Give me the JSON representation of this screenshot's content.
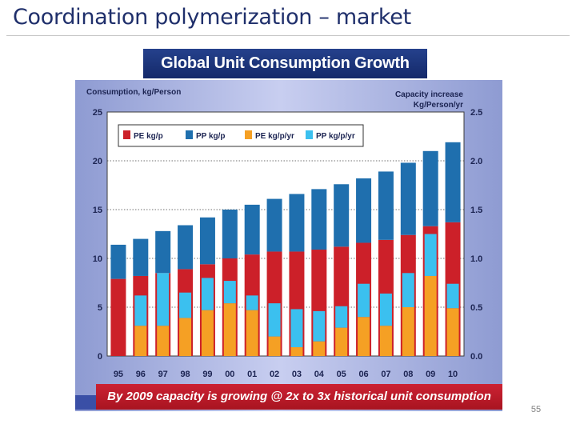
{
  "slide": {
    "title": "Coordination polymerization – market",
    "page_number": "55"
  },
  "colors": {
    "pe_kg_p": "#cc2029",
    "pp_kg_p": "#1f6fae",
    "pe_kg_p_yr": "#f5a024",
    "pp_kg_p_yr": "#3bc0ef"
  },
  "chart_data": {
    "type": "bar",
    "title": "Global Unit Consumption Growth",
    "ylabel": "Consumption, kg/Person",
    "y2label_line1": "Capacity increase",
    "y2label_line2": "Kg/Person/yr",
    "caption": "By 2009 capacity is growing @ 2x to 3x historical unit consumption",
    "ylim": [
      0,
      25
    ],
    "y2lim": [
      0,
      2.5
    ],
    "yticks": [
      0,
      5,
      10,
      15,
      20,
      25
    ],
    "y2ticks": [
      "0.0",
      "0.5",
      "1.0",
      "1.5",
      "2.0",
      "2.5"
    ],
    "categories": [
      "95",
      "96",
      "97",
      "98",
      "99",
      "00",
      "01",
      "02",
      "03",
      "04",
      "05",
      "06",
      "07",
      "08",
      "09",
      "10"
    ],
    "legend": [
      "PE kg/p",
      "PP kg/p",
      "PE kg/p/yr",
      "PP kg/p/yr"
    ],
    "legend_position": "top-left",
    "series": [
      {
        "name": "PE kg/p",
        "axis": "left",
        "stack": "consumption",
        "values": [
          7.9,
          8.2,
          8.5,
          8.9,
          9.4,
          10.0,
          10.4,
          10.7,
          10.7,
          10.9,
          11.2,
          11.6,
          11.9,
          12.4,
          13.3,
          13.7
        ]
      },
      {
        "name": "PP kg/p",
        "axis": "left",
        "stack": "consumption",
        "values": [
          3.5,
          3.8,
          4.3,
          4.5,
          4.8,
          5.0,
          5.1,
          5.4,
          5.9,
          6.2,
          6.4,
          6.6,
          7.0,
          7.4,
          7.7,
          8.2
        ]
      },
      {
        "name": "PE kg/p/yr",
        "axis": "right",
        "stack": "capacity",
        "values": [
          0.0,
          0.31,
          0.31,
          0.39,
          0.47,
          0.54,
          0.47,
          0.2,
          0.09,
          0.15,
          0.29,
          0.4,
          0.31,
          0.5,
          0.82,
          0.49
        ]
      },
      {
        "name": "PP kg/p/yr",
        "axis": "right",
        "stack": "capacity",
        "values": [
          0.0,
          0.31,
          0.54,
          0.26,
          0.33,
          0.23,
          0.15,
          0.34,
          0.39,
          0.31,
          0.22,
          0.34,
          0.33,
          0.35,
          0.43,
          0.25
        ]
      }
    ]
  }
}
